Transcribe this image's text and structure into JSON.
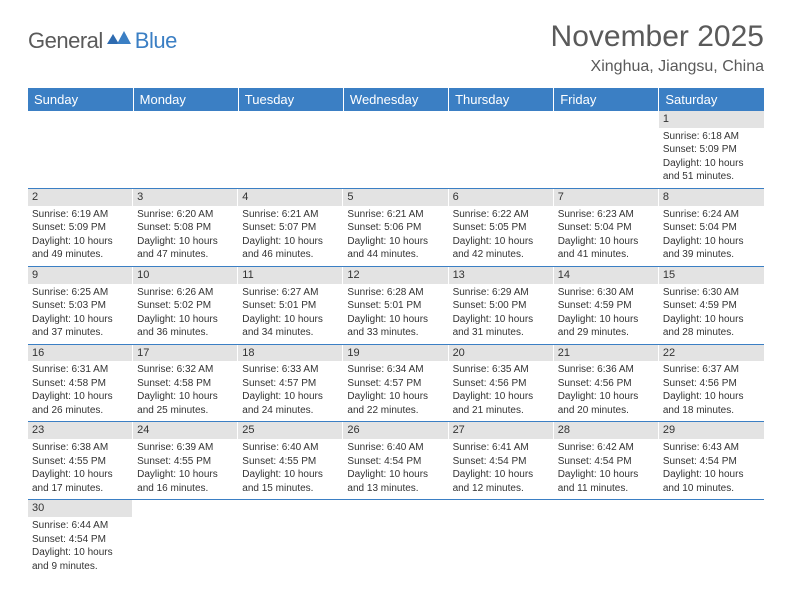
{
  "logo": {
    "general": "General",
    "blue": "Blue"
  },
  "title": "November 2025",
  "location": "Xinghua, Jiangsu, China",
  "colors": {
    "header_bg": "#3b7fc4",
    "header_text": "#ffffff",
    "dayhead_bg": "#e3e3e3",
    "border": "#3b7fc4",
    "text": "#333333",
    "logo_gray": "#5a5a5a",
    "logo_blue": "#3b7fc4"
  },
  "weekdays": [
    "Sunday",
    "Monday",
    "Tuesday",
    "Wednesday",
    "Thursday",
    "Friday",
    "Saturday"
  ],
  "weeks": [
    [
      {
        "n": "",
        "sunrise": "",
        "sunset": "",
        "daylight": ""
      },
      {
        "n": "",
        "sunrise": "",
        "sunset": "",
        "daylight": ""
      },
      {
        "n": "",
        "sunrise": "",
        "sunset": "",
        "daylight": ""
      },
      {
        "n": "",
        "sunrise": "",
        "sunset": "",
        "daylight": ""
      },
      {
        "n": "",
        "sunrise": "",
        "sunset": "",
        "daylight": ""
      },
      {
        "n": "",
        "sunrise": "",
        "sunset": "",
        "daylight": ""
      },
      {
        "n": "1",
        "sunrise": "Sunrise: 6:18 AM",
        "sunset": "Sunset: 5:09 PM",
        "daylight": "Daylight: 10 hours and 51 minutes."
      }
    ],
    [
      {
        "n": "2",
        "sunrise": "Sunrise: 6:19 AM",
        "sunset": "Sunset: 5:09 PM",
        "daylight": "Daylight: 10 hours and 49 minutes."
      },
      {
        "n": "3",
        "sunrise": "Sunrise: 6:20 AM",
        "sunset": "Sunset: 5:08 PM",
        "daylight": "Daylight: 10 hours and 47 minutes."
      },
      {
        "n": "4",
        "sunrise": "Sunrise: 6:21 AM",
        "sunset": "Sunset: 5:07 PM",
        "daylight": "Daylight: 10 hours and 46 minutes."
      },
      {
        "n": "5",
        "sunrise": "Sunrise: 6:21 AM",
        "sunset": "Sunset: 5:06 PM",
        "daylight": "Daylight: 10 hours and 44 minutes."
      },
      {
        "n": "6",
        "sunrise": "Sunrise: 6:22 AM",
        "sunset": "Sunset: 5:05 PM",
        "daylight": "Daylight: 10 hours and 42 minutes."
      },
      {
        "n": "7",
        "sunrise": "Sunrise: 6:23 AM",
        "sunset": "Sunset: 5:04 PM",
        "daylight": "Daylight: 10 hours and 41 minutes."
      },
      {
        "n": "8",
        "sunrise": "Sunrise: 6:24 AM",
        "sunset": "Sunset: 5:04 PM",
        "daylight": "Daylight: 10 hours and 39 minutes."
      }
    ],
    [
      {
        "n": "9",
        "sunrise": "Sunrise: 6:25 AM",
        "sunset": "Sunset: 5:03 PM",
        "daylight": "Daylight: 10 hours and 37 minutes."
      },
      {
        "n": "10",
        "sunrise": "Sunrise: 6:26 AM",
        "sunset": "Sunset: 5:02 PM",
        "daylight": "Daylight: 10 hours and 36 minutes."
      },
      {
        "n": "11",
        "sunrise": "Sunrise: 6:27 AM",
        "sunset": "Sunset: 5:01 PM",
        "daylight": "Daylight: 10 hours and 34 minutes."
      },
      {
        "n": "12",
        "sunrise": "Sunrise: 6:28 AM",
        "sunset": "Sunset: 5:01 PM",
        "daylight": "Daylight: 10 hours and 33 minutes."
      },
      {
        "n": "13",
        "sunrise": "Sunrise: 6:29 AM",
        "sunset": "Sunset: 5:00 PM",
        "daylight": "Daylight: 10 hours and 31 minutes."
      },
      {
        "n": "14",
        "sunrise": "Sunrise: 6:30 AM",
        "sunset": "Sunset: 4:59 PM",
        "daylight": "Daylight: 10 hours and 29 minutes."
      },
      {
        "n": "15",
        "sunrise": "Sunrise: 6:30 AM",
        "sunset": "Sunset: 4:59 PM",
        "daylight": "Daylight: 10 hours and 28 minutes."
      }
    ],
    [
      {
        "n": "16",
        "sunrise": "Sunrise: 6:31 AM",
        "sunset": "Sunset: 4:58 PM",
        "daylight": "Daylight: 10 hours and 26 minutes."
      },
      {
        "n": "17",
        "sunrise": "Sunrise: 6:32 AM",
        "sunset": "Sunset: 4:58 PM",
        "daylight": "Daylight: 10 hours and 25 minutes."
      },
      {
        "n": "18",
        "sunrise": "Sunrise: 6:33 AM",
        "sunset": "Sunset: 4:57 PM",
        "daylight": "Daylight: 10 hours and 24 minutes."
      },
      {
        "n": "19",
        "sunrise": "Sunrise: 6:34 AM",
        "sunset": "Sunset: 4:57 PM",
        "daylight": "Daylight: 10 hours and 22 minutes."
      },
      {
        "n": "20",
        "sunrise": "Sunrise: 6:35 AM",
        "sunset": "Sunset: 4:56 PM",
        "daylight": "Daylight: 10 hours and 21 minutes."
      },
      {
        "n": "21",
        "sunrise": "Sunrise: 6:36 AM",
        "sunset": "Sunset: 4:56 PM",
        "daylight": "Daylight: 10 hours and 20 minutes."
      },
      {
        "n": "22",
        "sunrise": "Sunrise: 6:37 AM",
        "sunset": "Sunset: 4:56 PM",
        "daylight": "Daylight: 10 hours and 18 minutes."
      }
    ],
    [
      {
        "n": "23",
        "sunrise": "Sunrise: 6:38 AM",
        "sunset": "Sunset: 4:55 PM",
        "daylight": "Daylight: 10 hours and 17 minutes."
      },
      {
        "n": "24",
        "sunrise": "Sunrise: 6:39 AM",
        "sunset": "Sunset: 4:55 PM",
        "daylight": "Daylight: 10 hours and 16 minutes."
      },
      {
        "n": "25",
        "sunrise": "Sunrise: 6:40 AM",
        "sunset": "Sunset: 4:55 PM",
        "daylight": "Daylight: 10 hours and 15 minutes."
      },
      {
        "n": "26",
        "sunrise": "Sunrise: 6:40 AM",
        "sunset": "Sunset: 4:54 PM",
        "daylight": "Daylight: 10 hours and 13 minutes."
      },
      {
        "n": "27",
        "sunrise": "Sunrise: 6:41 AM",
        "sunset": "Sunset: 4:54 PM",
        "daylight": "Daylight: 10 hours and 12 minutes."
      },
      {
        "n": "28",
        "sunrise": "Sunrise: 6:42 AM",
        "sunset": "Sunset: 4:54 PM",
        "daylight": "Daylight: 10 hours and 11 minutes."
      },
      {
        "n": "29",
        "sunrise": "Sunrise: 6:43 AM",
        "sunset": "Sunset: 4:54 PM",
        "daylight": "Daylight: 10 hours and 10 minutes."
      }
    ],
    [
      {
        "n": "30",
        "sunrise": "Sunrise: 6:44 AM",
        "sunset": "Sunset: 4:54 PM",
        "daylight": "Daylight: 10 hours and 9 minutes."
      },
      {
        "n": "",
        "sunrise": "",
        "sunset": "",
        "daylight": ""
      },
      {
        "n": "",
        "sunrise": "",
        "sunset": "",
        "daylight": ""
      },
      {
        "n": "",
        "sunrise": "",
        "sunset": "",
        "daylight": ""
      },
      {
        "n": "",
        "sunrise": "",
        "sunset": "",
        "daylight": ""
      },
      {
        "n": "",
        "sunrise": "",
        "sunset": "",
        "daylight": ""
      },
      {
        "n": "",
        "sunrise": "",
        "sunset": "",
        "daylight": ""
      }
    ]
  ]
}
